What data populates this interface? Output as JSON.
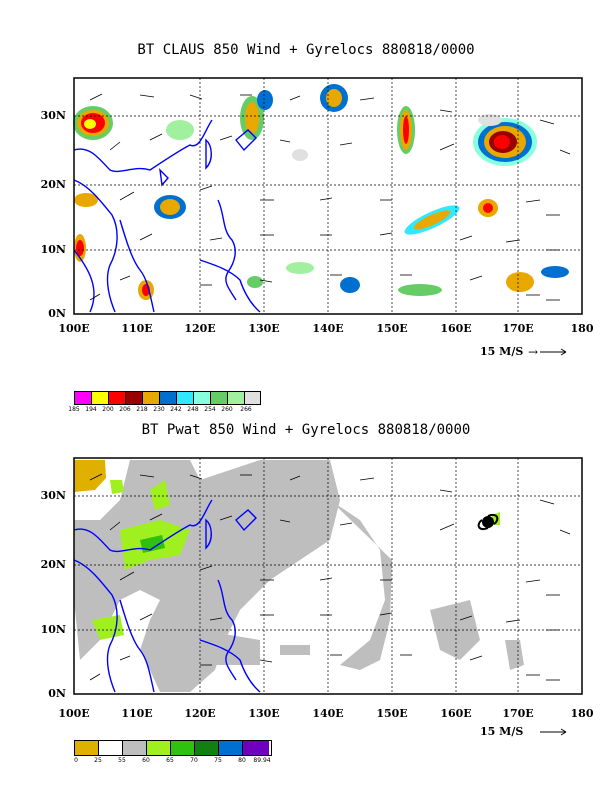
{
  "panels": [
    {
      "title": "BT CLAUS 850 Wind + Gyrelocs 880818/0000",
      "y_labels": [
        "30N",
        "20N",
        "10N",
        "0N"
      ],
      "x_labels": [
        "100E",
        "110E",
        "120E",
        "130E",
        "140E",
        "150E",
        "160E",
        "170E",
        "180"
      ],
      "scale_label": "15 M/S",
      "colorbar": {
        "labels": [
          "185",
          "194",
          "200",
          "206",
          "218",
          "230",
          "242",
          "248",
          "254",
          "260",
          "266"
        ],
        "colors": [
          "#ff00ff",
          "#ffff00",
          "#ff0000",
          "#990000",
          "#e8a800",
          "#0070d0",
          "#30e8ff",
          "#88ffdd",
          "#66cc66",
          "#a0f0a0",
          "#e0e0e0"
        ]
      }
    },
    {
      "title": "BT Pwat 850 Wind + Gyrelocs 880818/0000",
      "y_labels": [
        "30N",
        "20N",
        "10N",
        "0N"
      ],
      "x_labels": [
        "100E",
        "110E",
        "120E",
        "130E",
        "140E",
        "150E",
        "160E",
        "170E",
        "180"
      ],
      "scale_label": "15 M/S",
      "colorbar": {
        "labels": [
          "0",
          "25",
          "55",
          "60",
          "65",
          "70",
          "75",
          "80",
          "89.94"
        ],
        "colors": [
          "#e0b000",
          "#ffffff",
          "#bebebe",
          "#a0f020",
          "#30c010",
          "#108010",
          "#0070d0",
          "#7000c0"
        ]
      }
    }
  ]
}
